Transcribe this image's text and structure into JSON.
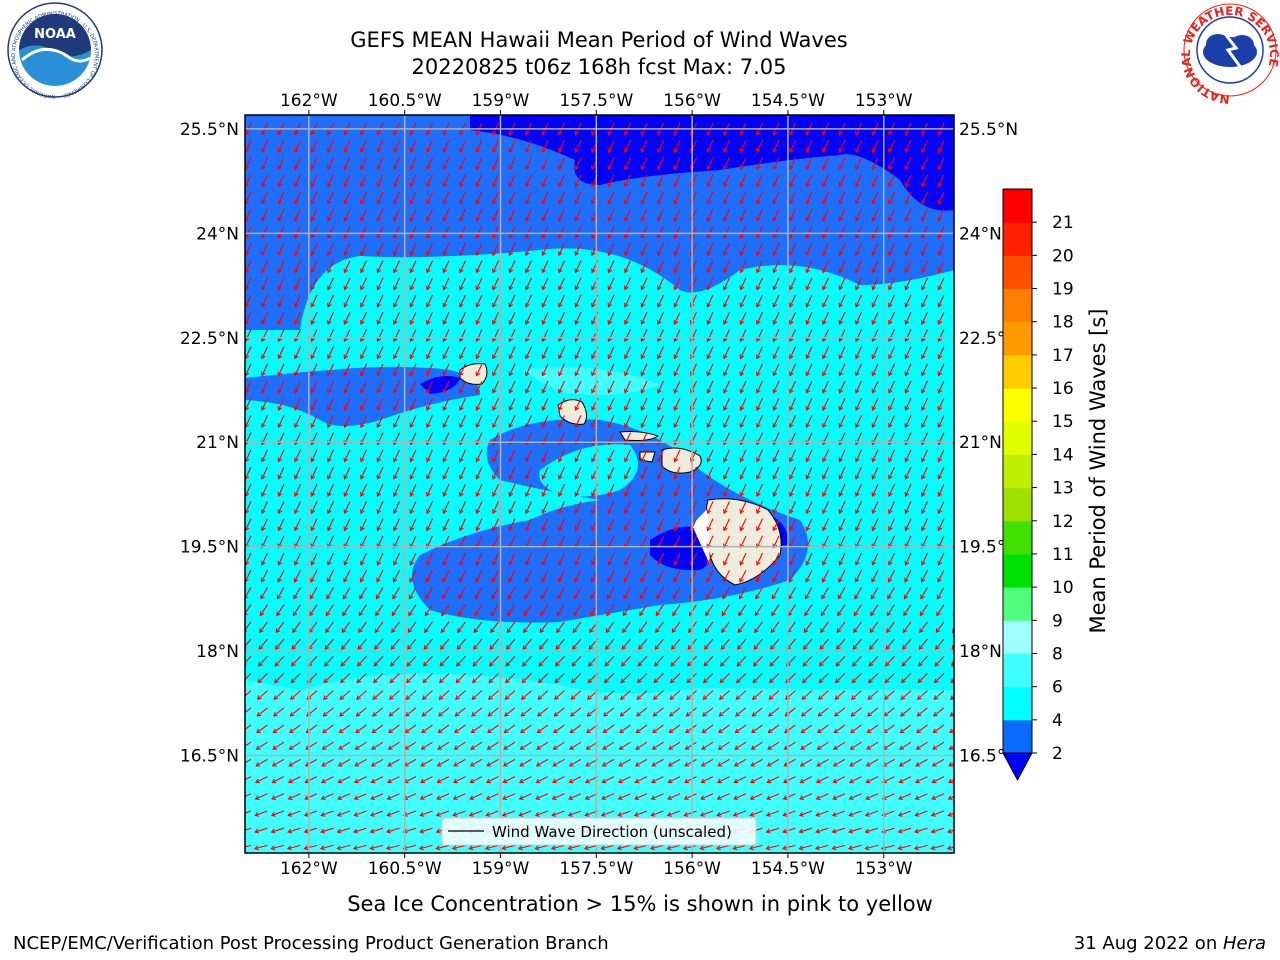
{
  "header": {
    "title_line1": "GEFS MEAN Hawaii Mean Period of Wind Waves",
    "title_line2": "20220825 t06z 168h fcst   Max: 7.05"
  },
  "logos": {
    "noaa": {
      "text": "NOAA",
      "ring_text": "NATIONAL OCEANIC AND ATMOSPHERIC ADMINISTRATION · U.S. DEPARTMENT OF COMMERCE",
      "colors": {
        "navy": "#1f3a7a",
        "sky": "#2a8fd6",
        "ring": "#ffffff"
      }
    },
    "nws": {
      "ring_text": "NATIONAL WEATHER SERVICE",
      "colors": {
        "red": "#e8241c",
        "blue": "#1a3fa8"
      }
    }
  },
  "map": {
    "lon_ticks_top": [
      "162°W",
      "160.5°W",
      "159°W",
      "157.5°W",
      "156°W",
      "154.5°W",
      "153°W"
    ],
    "lon_ticks_bottom": [
      "162°W",
      "160.5°W",
      "159°W",
      "157.5°W",
      "156°W",
      "154.5°W",
      "153°W"
    ],
    "lat_ticks_left": [
      "25.5°N",
      "24°N",
      "22.5°N",
      "21°N",
      "19.5°N",
      "18°N",
      "16.5°N"
    ],
    "lat_ticks_right": [
      "25.5°N",
      "24°N",
      "22.5°N",
      "21°N",
      "19.5°N",
      "18°N",
      "16.5°N"
    ],
    "lon_values": [
      -162,
      -160.5,
      -159,
      -157.5,
      -156,
      -154.5,
      -153
    ],
    "lat_values": [
      25.5,
      24,
      22.5,
      21,
      19.5,
      18,
      16.5
    ],
    "arrow_color": "#ff0000",
    "field_colors": {
      "lt2": "#0000ff",
      "2to4": "#1e6fff",
      "4to6": "#00ffff",
      "6to8": "#40ffff",
      "land": "#f0ecdc"
    },
    "legend_label": "Wind Wave Direction (unscaled)"
  },
  "colorbar": {
    "label": "Mean Period of Wind Waves [s]",
    "ticks": [
      "2",
      "4",
      "6",
      "8",
      "9",
      "10",
      "11",
      "12",
      "13",
      "14",
      "15",
      "16",
      "17",
      "18",
      "19",
      "20",
      "21"
    ],
    "bins": [
      {
        "from": 2,
        "to": 4,
        "color": "#0a6cff"
      },
      {
        "from": 4,
        "to": 6,
        "color": "#00ffff"
      },
      {
        "from": 6,
        "to": 8,
        "color": "#40ffff"
      },
      {
        "from": 8,
        "to": 9,
        "color": "#a0ffff"
      },
      {
        "from": 9,
        "to": 10,
        "color": "#50ff80"
      },
      {
        "from": 10,
        "to": 11,
        "color": "#00e000"
      },
      {
        "from": 11,
        "to": 12,
        "color": "#40e000"
      },
      {
        "from": 12,
        "to": 13,
        "color": "#a0e000"
      },
      {
        "from": 13,
        "to": 14,
        "color": "#c0f000"
      },
      {
        "from": 14,
        "to": 15,
        "color": "#e0ff00"
      },
      {
        "from": 15,
        "to": 16,
        "color": "#ffff00"
      },
      {
        "from": 16,
        "to": 17,
        "color": "#ffcc00"
      },
      {
        "from": 17,
        "to": 18,
        "color": "#ff9900"
      },
      {
        "from": 18,
        "to": 19,
        "color": "#ff8000"
      },
      {
        "from": 19,
        "to": 20,
        "color": "#ff5000"
      },
      {
        "from": 20,
        "to": 21,
        "color": "#ff2000"
      },
      {
        "from": 21,
        "to": 22,
        "color": "#ff0000"
      }
    ],
    "under_color": "#0000ff"
  },
  "caption": "Sea Ice Concentration > 15% is shown in pink to yellow",
  "footer": {
    "left": "NCEP/EMC/Verification Post Processing Product Generation Branch",
    "right_date": "31 Aug 2022 on ",
    "right_host": "Hera"
  }
}
